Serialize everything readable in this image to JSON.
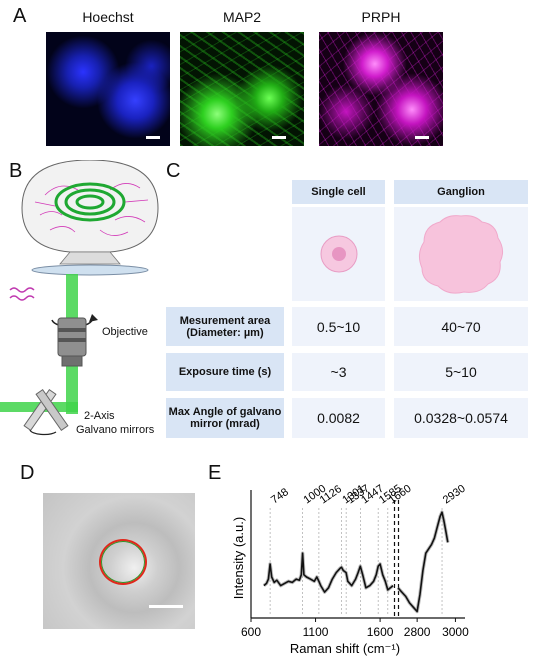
{
  "panels": {
    "a": "A",
    "b": "B",
    "c": "C",
    "d": "D",
    "e": "E"
  },
  "panel_a": {
    "stains": [
      "Hoechst",
      "MAP2",
      "PRPH"
    ],
    "colors": {
      "hoechst": "#1a24e0",
      "map2": "#22d21a",
      "prph": "#e21ee0"
    }
  },
  "panel_b": {
    "objective_label": "Objective",
    "mirror_label_1": "2-Axis",
    "mirror_label_2": "Galvano mirrors"
  },
  "panel_c": {
    "columns": [
      "Single cell",
      "Ganglion"
    ],
    "rows": [
      {
        "label_line1": "Mesurement area",
        "label_line2": "(Diameter: µm)",
        "single": "0.5~10",
        "ganglion": "40~70"
      },
      {
        "label_line1": "Exposure time (s)",
        "label_line2": "",
        "single": "~3",
        "ganglion": "5~10"
      },
      {
        "label_line1": "Max Angle of galvano",
        "label_line2": "mirror (mrad)",
        "single": "0.0082",
        "ganglion": "0.0328~0.0574"
      }
    ]
  },
  "chart_data": {
    "type": "line",
    "xlabel": "Raman shift (cm⁻¹)",
    "ylabel": "Intensity (a.u.)",
    "x_ticks": [
      "600",
      "1100",
      "1600",
      "2800",
      "3000"
    ],
    "segments": [
      {
        "xlim": [
          600,
          1700
        ],
        "x": [
          700,
          720,
          735,
          748,
          760,
          780,
          800,
          830,
          860,
          890,
          920,
          950,
          975,
          990,
          1000,
          1010,
          1030,
          1060,
          1090,
          1110,
          1126,
          1140,
          1170,
          1200,
          1230,
          1260,
          1290,
          1301,
          1315,
          1337,
          1350,
          1380,
          1410,
          1430,
          1447,
          1465,
          1490,
          1520,
          1550,
          1570,
          1585,
          1600,
          1620,
          1640,
          1660,
          1680,
          1700
        ],
        "y": [
          0.3,
          0.32,
          0.36,
          0.5,
          0.38,
          0.33,
          0.35,
          0.3,
          0.32,
          0.34,
          0.33,
          0.36,
          0.35,
          0.4,
          0.6,
          0.4,
          0.38,
          0.36,
          0.34,
          0.38,
          0.34,
          0.3,
          0.24,
          0.28,
          0.36,
          0.42,
          0.46,
          0.47,
          0.44,
          0.42,
          0.34,
          0.3,
          0.36,
          0.42,
          0.48,
          0.4,
          0.28,
          0.3,
          0.34,
          0.4,
          0.48,
          0.5,
          0.4,
          0.34,
          0.26,
          0.28,
          0.3
        ]
      },
      {
        "xlim": [
          2700,
          3050
        ],
        "x": [
          2700,
          2720,
          2740,
          2760,
          2780,
          2800,
          2815,
          2830,
          2845,
          2860,
          2875,
          2890,
          2905,
          2920,
          2930,
          2940,
          2950,
          2960
        ],
        "y": [
          0.28,
          0.24,
          0.2,
          0.14,
          0.1,
          0.06,
          0.22,
          0.44,
          0.6,
          0.64,
          0.68,
          0.74,
          0.84,
          0.94,
          0.98,
          0.9,
          0.8,
          0.7
        ]
      }
    ],
    "peak_labels": [
      "748",
      "1000",
      "1126",
      "1301",
      "1337",
      "1447",
      "1585",
      "1660",
      "2930"
    ]
  }
}
